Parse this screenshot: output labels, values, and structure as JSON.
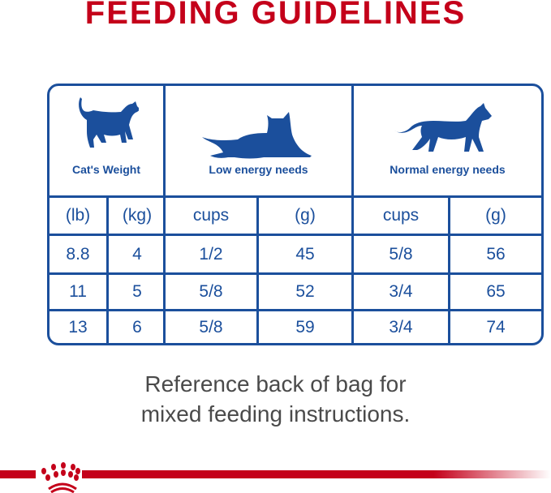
{
  "title": "FEEDING GUIDELINES",
  "headers": {
    "weight": "Cat's Weight",
    "low": "Low energy needs",
    "normal": "Normal energy needs"
  },
  "subheaders": [
    "(lb)",
    "(kg)",
    "cups",
    "(g)",
    "cups",
    "(g)"
  ],
  "rows": [
    [
      "8.8",
      "4",
      "1/2",
      "45",
      "5/8",
      "56"
    ],
    [
      "11",
      "5",
      "5/8",
      "52",
      "3/4",
      "65"
    ],
    [
      "13",
      "6",
      "5/8",
      "59",
      "3/4",
      "74"
    ]
  ],
  "note": [
    "Reference back of bag for",
    "mixed feeding instructions."
  ],
  "colors": {
    "red": "#c4001a",
    "blue": "#1b4f9c"
  },
  "icons": [
    "standing-cat-icon",
    "lying-cat-icon",
    "walking-cat-icon",
    "royal-canin-crown-logo"
  ]
}
